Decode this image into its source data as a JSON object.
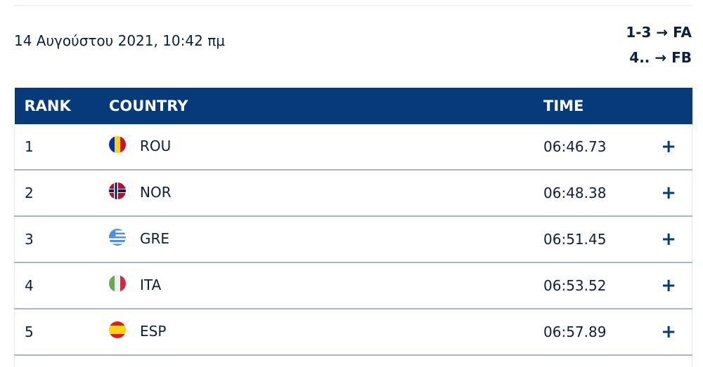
{
  "header": {
    "date": "14 Αυγούστου 2021, 10:42 πμ",
    "qualification": [
      "1-3 → FA",
      "4.. → FB"
    ]
  },
  "table": {
    "columns": [
      "RANK",
      "COUNTRY",
      "TIME"
    ],
    "rows": [
      {
        "rank": "1",
        "country": "ROU",
        "time": "06:46.73",
        "flag": "romania-flag"
      },
      {
        "rank": "2",
        "country": "NOR",
        "time": "06:48.38",
        "flag": "norway-flag"
      },
      {
        "rank": "3",
        "country": "GRE",
        "time": "06:51.45",
        "flag": "greece-flag"
      },
      {
        "rank": "4",
        "country": "ITA",
        "time": "06:53.52",
        "flag": "italy-flag"
      },
      {
        "rank": "5",
        "country": "ESP",
        "time": "06:57.89",
        "flag": "spain-flag"
      }
    ],
    "expand_icon": "+"
  },
  "colors": {
    "header_bg": "#063a7a",
    "text": "#0c1f3c"
  }
}
